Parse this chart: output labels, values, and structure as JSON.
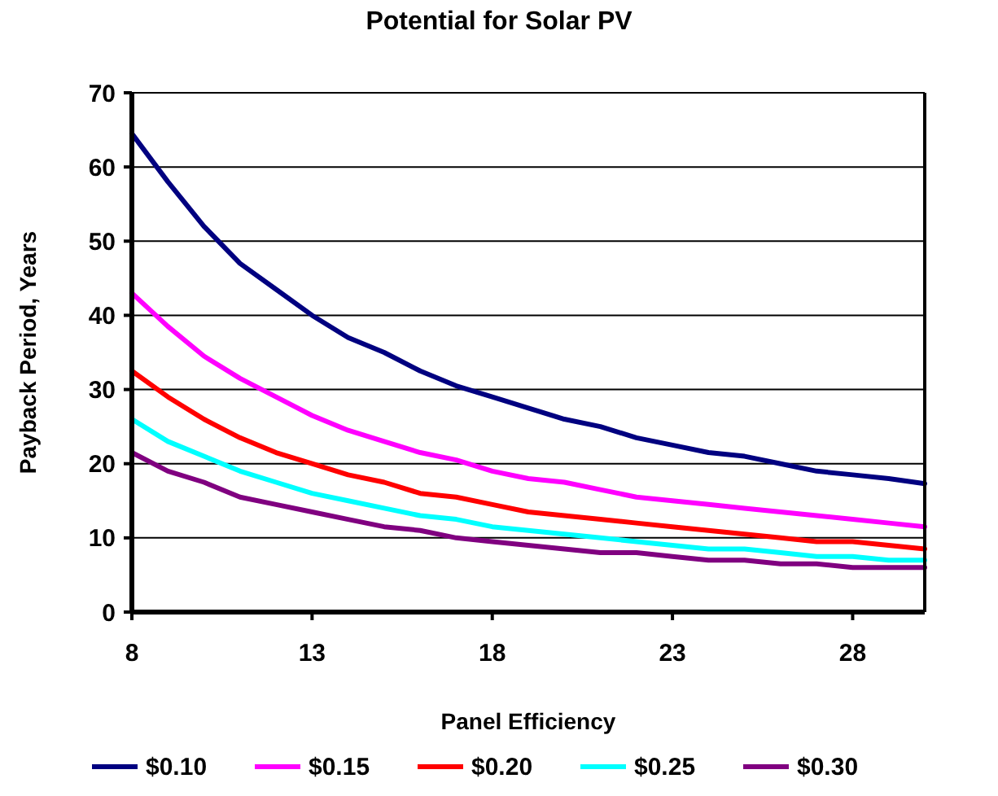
{
  "chart_data": {
    "type": "line",
    "title": "Potential for Solar PV",
    "xlabel": "Panel Efficiency",
    "ylabel": "Payback Period, Years",
    "x": [
      8,
      9,
      10,
      11,
      12,
      13,
      14,
      15,
      16,
      17,
      18,
      19,
      20,
      21,
      22,
      23,
      24,
      25,
      26,
      27,
      28,
      29,
      30
    ],
    "xlim": [
      8,
      30
    ],
    "xticks": [
      8,
      13,
      18,
      23,
      28
    ],
    "ylim": [
      0,
      70
    ],
    "yticks": [
      0,
      10,
      20,
      30,
      40,
      50,
      60,
      70
    ],
    "grid": "y",
    "legend": "bottom",
    "marker": "none",
    "line_style": "solid",
    "series": [
      {
        "name": "$0.10",
        "color": "#000080",
        "values": [
          64.5,
          58,
          52,
          47,
          43.5,
          40,
          37,
          35,
          32.5,
          30.5,
          29,
          27.5,
          26,
          25,
          23.5,
          22.5,
          21.5,
          21,
          20,
          19,
          18.5,
          18,
          17.3
        ]
      },
      {
        "name": "$0.15",
        "color": "#ff00ff",
        "values": [
          43,
          38.5,
          34.5,
          31.5,
          29,
          26.5,
          24.5,
          23,
          21.5,
          20.5,
          19,
          18,
          17.5,
          16.5,
          15.5,
          15,
          14.5,
          14,
          13.5,
          13,
          12.5,
          12,
          11.5
        ]
      },
      {
        "name": "$0.20",
        "color": "#ff0000",
        "values": [
          32.5,
          29,
          26,
          23.5,
          21.5,
          20,
          18.5,
          17.5,
          16,
          15.5,
          14.5,
          13.5,
          13,
          12.5,
          12,
          11.5,
          11,
          10.5,
          10,
          9.5,
          9.5,
          9,
          8.5
        ]
      },
      {
        "name": "$0.25",
        "color": "#00ffff",
        "values": [
          26,
          23,
          21,
          19,
          17.5,
          16,
          15,
          14,
          13,
          12.5,
          11.5,
          11,
          10.5,
          10,
          9.5,
          9,
          8.5,
          8.5,
          8,
          7.5,
          7.5,
          7,
          7
        ]
      },
      {
        "name": "$0.30",
        "color": "#800080",
        "values": [
          21.5,
          19,
          17.5,
          15.5,
          14.5,
          13.5,
          12.5,
          11.5,
          11,
          10,
          9.5,
          9,
          8.5,
          8,
          8,
          7.5,
          7,
          7,
          6.5,
          6.5,
          6,
          6,
          6
        ]
      }
    ]
  }
}
